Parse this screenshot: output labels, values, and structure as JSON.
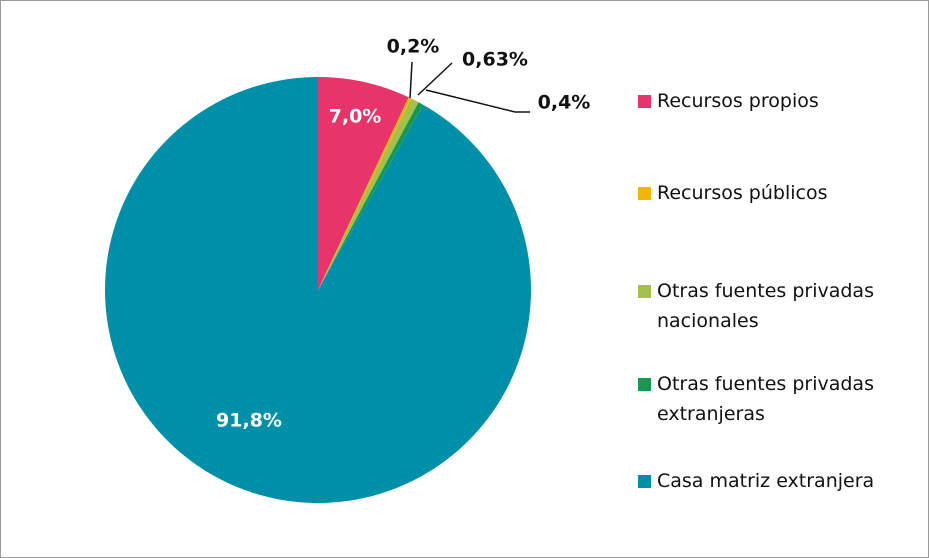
{
  "chart_data": {
    "type": "pie",
    "categories": [
      "Recursos propios",
      "Recursos públicos",
      "Otras fuentes privadas nacionales",
      "Otras fuentes privadas extranjeras",
      "Casa matriz extranjera"
    ],
    "values": [
      7.0,
      0.2,
      0.63,
      0.4,
      91.8
    ],
    "value_labels": [
      "7,0%",
      "0,2%",
      "0,63%",
      "0,4%",
      "91,8%"
    ],
    "colors": [
      "#e8336b",
      "#f5b400",
      "#a5c04a",
      "#149a50",
      "#008fa8"
    ]
  }
}
